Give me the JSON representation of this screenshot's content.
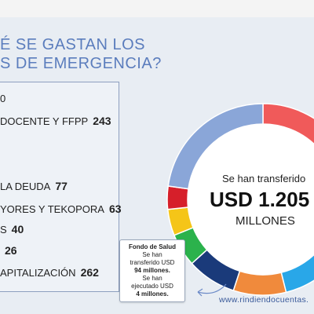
{
  "header": {
    "title_line1": "É SE GASTAN LOS",
    "title_line2": "S DE EMERGENCIA?"
  },
  "list": {
    "items": [
      {
        "label": "0",
        "value": ""
      },
      {
        "label": "DOCENTE Y FFPP",
        "value": "243"
      },
      {
        "label": "LA DEUDA",
        "value": "77"
      },
      {
        "label": "YORES Y TEKOPORA",
        "value": "63"
      },
      {
        "label": "S",
        "value": "40"
      },
      {
        "label": "",
        "value": "26"
      },
      {
        "label": "APITALIZACIÓN",
        "value": "262"
      }
    ]
  },
  "donut": {
    "center_line1": "Se han transferido",
    "center_line2": "USD 1.205",
    "center_line3": "MILLONES",
    "colors": [
      "#f05a5a",
      "#9ccc57",
      "#29a7e8",
      "#f08a3c",
      "#1a3a7a",
      "#2bb24c",
      "#f5c518",
      "#d61f2a",
      "#8aa6d8"
    ]
  },
  "note": {
    "title": "Fondo de Salud",
    "line1": "Se han",
    "line2": "transferido USD",
    "line3_bold": "94 millones.",
    "line4": "Se han",
    "line5": "ejecutado USD",
    "line6_bold": "4 millones."
  },
  "footer": {
    "url": "www.rindiendocuentas."
  }
}
